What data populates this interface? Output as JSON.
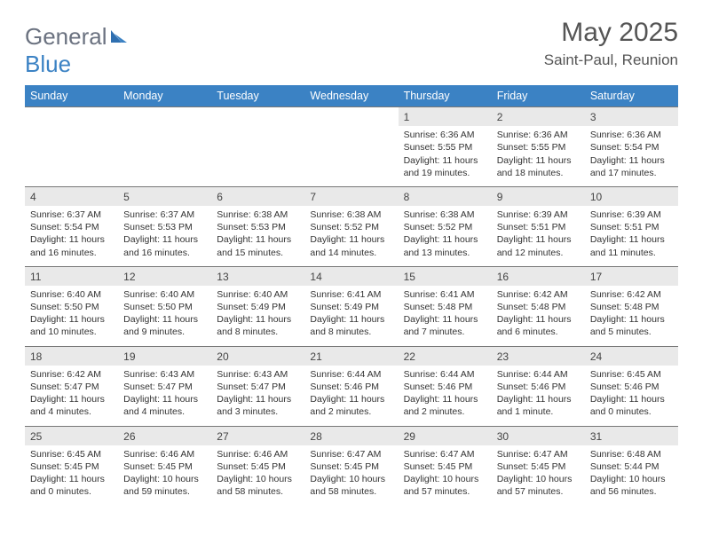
{
  "logo": {
    "word1": "General",
    "word2": "Blue"
  },
  "title": "May 2025",
  "location": "Saint-Paul, Reunion",
  "weekdays": [
    "Sunday",
    "Monday",
    "Tuesday",
    "Wednesday",
    "Thursday",
    "Friday",
    "Saturday"
  ],
  "colors": {
    "header_bg": "#3b82c4",
    "header_fg": "#ffffff",
    "daynum_bg": "#e9e9e9",
    "rule": "#777777",
    "text": "#333333"
  },
  "weeks": [
    [
      null,
      null,
      null,
      null,
      {
        "d": "1",
        "sr": "Sunrise: 6:36 AM",
        "ss": "Sunset: 5:55 PM",
        "dl": "Daylight: 11 hours and 19 minutes."
      },
      {
        "d": "2",
        "sr": "Sunrise: 6:36 AM",
        "ss": "Sunset: 5:55 PM",
        "dl": "Daylight: 11 hours and 18 minutes."
      },
      {
        "d": "3",
        "sr": "Sunrise: 6:36 AM",
        "ss": "Sunset: 5:54 PM",
        "dl": "Daylight: 11 hours and 17 minutes."
      }
    ],
    [
      {
        "d": "4",
        "sr": "Sunrise: 6:37 AM",
        "ss": "Sunset: 5:54 PM",
        "dl": "Daylight: 11 hours and 16 minutes."
      },
      {
        "d": "5",
        "sr": "Sunrise: 6:37 AM",
        "ss": "Sunset: 5:53 PM",
        "dl": "Daylight: 11 hours and 16 minutes."
      },
      {
        "d": "6",
        "sr": "Sunrise: 6:38 AM",
        "ss": "Sunset: 5:53 PM",
        "dl": "Daylight: 11 hours and 15 minutes."
      },
      {
        "d": "7",
        "sr": "Sunrise: 6:38 AM",
        "ss": "Sunset: 5:52 PM",
        "dl": "Daylight: 11 hours and 14 minutes."
      },
      {
        "d": "8",
        "sr": "Sunrise: 6:38 AM",
        "ss": "Sunset: 5:52 PM",
        "dl": "Daylight: 11 hours and 13 minutes."
      },
      {
        "d": "9",
        "sr": "Sunrise: 6:39 AM",
        "ss": "Sunset: 5:51 PM",
        "dl": "Daylight: 11 hours and 12 minutes."
      },
      {
        "d": "10",
        "sr": "Sunrise: 6:39 AM",
        "ss": "Sunset: 5:51 PM",
        "dl": "Daylight: 11 hours and 11 minutes."
      }
    ],
    [
      {
        "d": "11",
        "sr": "Sunrise: 6:40 AM",
        "ss": "Sunset: 5:50 PM",
        "dl": "Daylight: 11 hours and 10 minutes."
      },
      {
        "d": "12",
        "sr": "Sunrise: 6:40 AM",
        "ss": "Sunset: 5:50 PM",
        "dl": "Daylight: 11 hours and 9 minutes."
      },
      {
        "d": "13",
        "sr": "Sunrise: 6:40 AM",
        "ss": "Sunset: 5:49 PM",
        "dl": "Daylight: 11 hours and 8 minutes."
      },
      {
        "d": "14",
        "sr": "Sunrise: 6:41 AM",
        "ss": "Sunset: 5:49 PM",
        "dl": "Daylight: 11 hours and 8 minutes."
      },
      {
        "d": "15",
        "sr": "Sunrise: 6:41 AM",
        "ss": "Sunset: 5:48 PM",
        "dl": "Daylight: 11 hours and 7 minutes."
      },
      {
        "d": "16",
        "sr": "Sunrise: 6:42 AM",
        "ss": "Sunset: 5:48 PM",
        "dl": "Daylight: 11 hours and 6 minutes."
      },
      {
        "d": "17",
        "sr": "Sunrise: 6:42 AM",
        "ss": "Sunset: 5:48 PM",
        "dl": "Daylight: 11 hours and 5 minutes."
      }
    ],
    [
      {
        "d": "18",
        "sr": "Sunrise: 6:42 AM",
        "ss": "Sunset: 5:47 PM",
        "dl": "Daylight: 11 hours and 4 minutes."
      },
      {
        "d": "19",
        "sr": "Sunrise: 6:43 AM",
        "ss": "Sunset: 5:47 PM",
        "dl": "Daylight: 11 hours and 4 minutes."
      },
      {
        "d": "20",
        "sr": "Sunrise: 6:43 AM",
        "ss": "Sunset: 5:47 PM",
        "dl": "Daylight: 11 hours and 3 minutes."
      },
      {
        "d": "21",
        "sr": "Sunrise: 6:44 AM",
        "ss": "Sunset: 5:46 PM",
        "dl": "Daylight: 11 hours and 2 minutes."
      },
      {
        "d": "22",
        "sr": "Sunrise: 6:44 AM",
        "ss": "Sunset: 5:46 PM",
        "dl": "Daylight: 11 hours and 2 minutes."
      },
      {
        "d": "23",
        "sr": "Sunrise: 6:44 AM",
        "ss": "Sunset: 5:46 PM",
        "dl": "Daylight: 11 hours and 1 minute."
      },
      {
        "d": "24",
        "sr": "Sunrise: 6:45 AM",
        "ss": "Sunset: 5:46 PM",
        "dl": "Daylight: 11 hours and 0 minutes."
      }
    ],
    [
      {
        "d": "25",
        "sr": "Sunrise: 6:45 AM",
        "ss": "Sunset: 5:45 PM",
        "dl": "Daylight: 11 hours and 0 minutes."
      },
      {
        "d": "26",
        "sr": "Sunrise: 6:46 AM",
        "ss": "Sunset: 5:45 PM",
        "dl": "Daylight: 10 hours and 59 minutes."
      },
      {
        "d": "27",
        "sr": "Sunrise: 6:46 AM",
        "ss": "Sunset: 5:45 PM",
        "dl": "Daylight: 10 hours and 58 minutes."
      },
      {
        "d": "28",
        "sr": "Sunrise: 6:47 AM",
        "ss": "Sunset: 5:45 PM",
        "dl": "Daylight: 10 hours and 58 minutes."
      },
      {
        "d": "29",
        "sr": "Sunrise: 6:47 AM",
        "ss": "Sunset: 5:45 PM",
        "dl": "Daylight: 10 hours and 57 minutes."
      },
      {
        "d": "30",
        "sr": "Sunrise: 6:47 AM",
        "ss": "Sunset: 5:45 PM",
        "dl": "Daylight: 10 hours and 57 minutes."
      },
      {
        "d": "31",
        "sr": "Sunrise: 6:48 AM",
        "ss": "Sunset: 5:44 PM",
        "dl": "Daylight: 10 hours and 56 minutes."
      }
    ]
  ]
}
